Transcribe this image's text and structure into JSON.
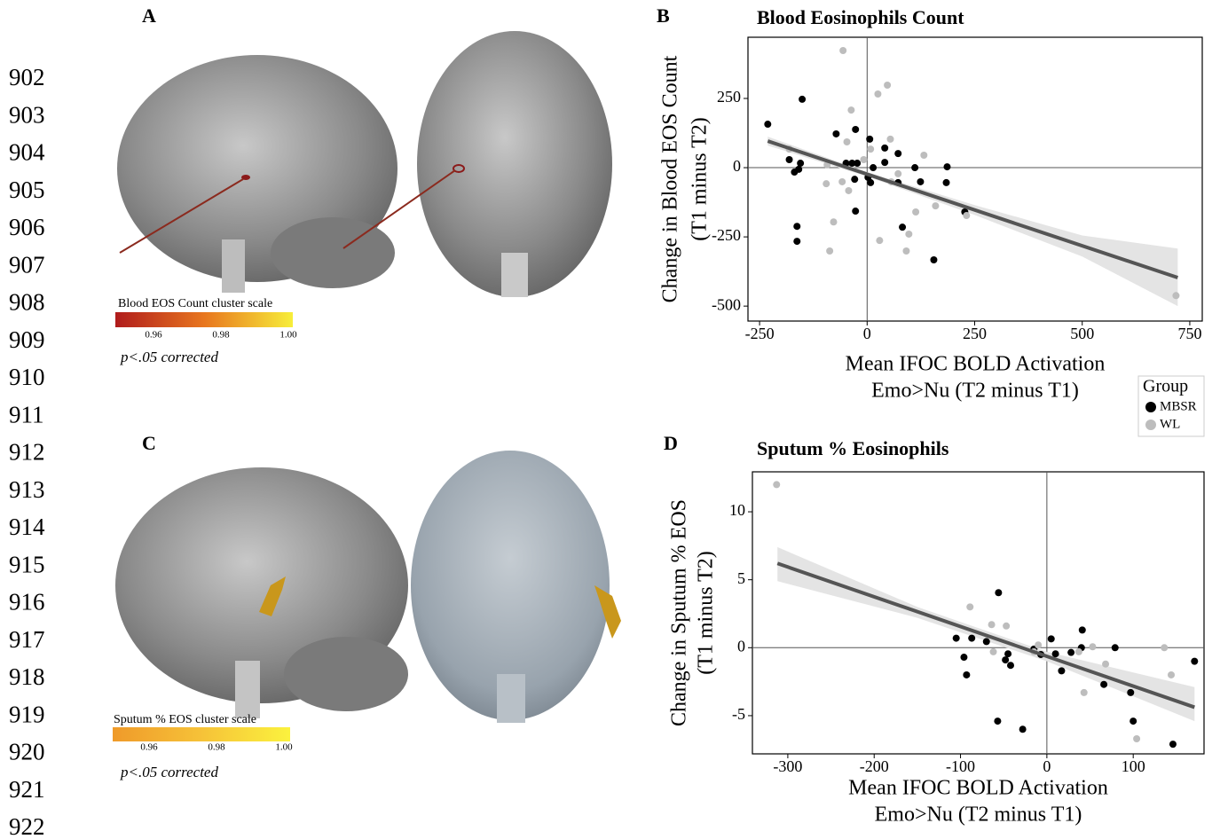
{
  "line_numbers": [
    "902",
    "903",
    "904",
    "905",
    "906",
    "907",
    "908",
    "909",
    "910",
    "911",
    "912",
    "913",
    "914",
    "915",
    "916",
    "917",
    "918",
    "919",
    "920",
    "921",
    "922"
  ],
  "panels": {
    "A": {
      "label": "A",
      "colorbar_title": "Blood EOS Count cluster scale",
      "colorbar_ticks": [
        "0.96",
        "0.98",
        "1.00"
      ],
      "note": "p<.05 corrected"
    },
    "C": {
      "label": "C",
      "colorbar_title": "Sputum % EOS cluster scale",
      "colorbar_ticks": [
        "0.96",
        "0.98",
        "1.00"
      ],
      "note": "p<.05 corrected"
    }
  },
  "chart_data": [
    {
      "type": "scatter",
      "panel_label": "B",
      "title": "Blood Eosinophils Count",
      "xlabel": [
        "Mean IFOC BOLD Activation",
        "Emo>Nu (T2 minus T1)"
      ],
      "ylabel": [
        "Change in Blood EOS Count",
        "(T1 minus T2)"
      ],
      "xlim": [
        -277,
        779
      ],
      "ylim": [
        -554,
        471
      ],
      "xticks": [
        -250,
        0,
        250,
        500,
        750
      ],
      "yticks": [
        -500,
        -250,
        0,
        250
      ],
      "series": [
        {
          "name": "MBSR",
          "color": "#000000",
          "x": [
            -231,
            -151,
            -72,
            -27,
            6,
            41,
            41,
            72,
            -181,
            -155,
            -169,
            -159,
            -49,
            -35,
            -23,
            2,
            8,
            72,
            124,
            186,
            184,
            -163,
            -163,
            -27,
            82,
            155,
            227,
            111,
            -29,
            14
          ],
          "values": [
            157,
            247,
            122,
            138,
            103,
            71,
            19,
            51,
            29,
            16,
            -16,
            -6,
            16,
            16,
            16,
            -35,
            -54,
            -54,
            -51,
            3,
            -54,
            -212,
            -266,
            -157,
            -215,
            -333,
            -160,
            0,
            -42,
            0
          ]
        },
        {
          "name": "WL",
          "color": "#bdbdbd",
          "x": [
            -56,
            25,
            47,
            -37,
            54,
            8,
            -181,
            -93,
            -95,
            -78,
            -87,
            29,
            91,
            97,
            113,
            -43,
            132,
            159,
            231,
            718,
            -47,
            72,
            -58,
            56,
            -8
          ],
          "values": [
            423,
            266,
            298,
            208,
            103,
            67,
            67,
            10,
            -58,
            -196,
            -301,
            -263,
            -301,
            -240,
            -160,
            -83,
            45,
            -138,
            -173,
            -462,
            93,
            -22,
            -51,
            -51,
            29
          ]
        }
      ],
      "fit": {
        "color": "#555555",
        "x": [
          -231,
          722
        ],
        "y": [
          96,
          -397
        ]
      },
      "band": {
        "color": "#e4e4e4",
        "x": [
          -231,
          0,
          250,
          500,
          722
        ],
        "upper": [
          112,
          -16,
          -135,
          -245,
          -292
        ],
        "lower": [
          80,
          -32,
          -171,
          -321,
          -500
        ]
      },
      "legend": {
        "title": "Group"
      }
    },
    {
      "type": "scatter",
      "panel_label": "D",
      "title": "Sputum % Eosinophils",
      "xlabel": [
        "Mean IFOC BOLD Activation",
        "Emo>Nu (T2 minus T1)"
      ],
      "ylabel": [
        "Change in Sputum % EOS",
        "(T1 minus T2)"
      ],
      "xlim": [
        -341,
        182
      ],
      "ylim": [
        -7.81,
        12.94
      ],
      "xticks": [
        -300,
        -200,
        -100,
        0,
        100
      ],
      "yticks": [
        -5,
        0,
        5,
        10
      ],
      "series": [
        {
          "name": "MBSR",
          "color": "#000000",
          "x": [
            -56,
            -105,
            -87,
            -96,
            -70,
            -45,
            -42,
            -48,
            -93,
            -57,
            -28,
            -15,
            5,
            10,
            17,
            28,
            41,
            40,
            79,
            66,
            97,
            100,
            146,
            171,
            -7
          ],
          "values": [
            4.05,
            0.7,
            0.7,
            -0.7,
            0.45,
            -0.45,
            -1.3,
            -0.9,
            -2.0,
            -5.4,
            -6.0,
            -0.1,
            0.65,
            -0.45,
            -1.7,
            -0.35,
            1.3,
            0,
            0,
            -2.7,
            -3.3,
            -5.4,
            -7.1,
            -1.0,
            -0.5
          ]
        },
        {
          "name": "WL",
          "color": "#bdbdbd",
          "x": [
            -313,
            -89,
            -64,
            -47,
            -62,
            -15,
            -10,
            53,
            68,
            43,
            136,
            144,
            104,
            37
          ],
          "values": [
            12.0,
            3.0,
            1.7,
            1.6,
            -0.3,
            -0.3,
            0.2,
            0.07,
            -1.2,
            -3.3,
            0,
            -2.0,
            -6.7,
            -0.3
          ]
        }
      ],
      "fit": {
        "color": "#555555",
        "x": [
          -312,
          171
        ],
        "y": [
          6.2,
          -4.38
        ]
      },
      "band": {
        "color": "#e4e4e4",
        "x": [
          -312,
          -150,
          0,
          171
        ],
        "upper": [
          7.4,
          3.0,
          -0.3,
          -2.9
        ],
        "lower": [
          4.9,
          2.2,
          -1.0,
          -5.4
        ]
      }
    }
  ]
}
